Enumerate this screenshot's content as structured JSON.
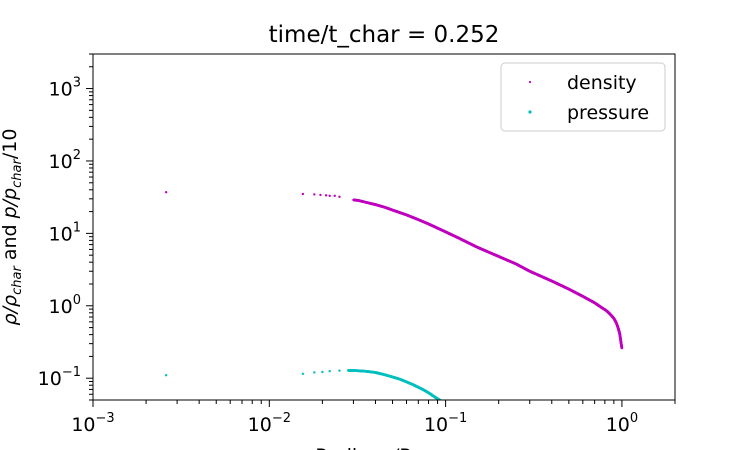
{
  "chart_data": {
    "type": "scatter",
    "title": "time/t_char = 0.252",
    "xlabel": "Radius r/R",
    "ylabel_parts": {
      "rho": "ρ/ρ",
      "rho_sub": "char",
      "and": " and ",
      "p": "p/p",
      "p_sub": "char",
      "tail": "/10"
    },
    "xscale": "log",
    "yscale": "log",
    "xlim": [
      0.001,
      2.0
    ],
    "ylim": [
      0.05,
      3000
    ],
    "x_ticks": [
      {
        "base": "10",
        "exp": "−3",
        "value": 0.001
      },
      {
        "base": "10",
        "exp": "−2",
        "value": 0.01
      },
      {
        "base": "10",
        "exp": "−1",
        "value": 0.1
      },
      {
        "base": "10",
        "exp": "0",
        "value": 1
      }
    ],
    "y_ticks": [
      {
        "base": "10",
        "exp": "−1",
        "value": 0.1
      },
      {
        "base": "10",
        "exp": "0",
        "value": 1
      },
      {
        "base": "10",
        "exp": "1",
        "value": 10
      },
      {
        "base": "10",
        "exp": "2",
        "value": 100
      },
      {
        "base": "10",
        "exp": "3",
        "value": 1000
      }
    ],
    "legend_position": "top-right",
    "grid": false,
    "series": [
      {
        "name": "density",
        "color": "#bf00bf",
        "points": [
          [
            0.0026,
            37
          ],
          [
            0.0155,
            35
          ],
          [
            0.018,
            34.5
          ],
          [
            0.0195,
            34
          ],
          [
            0.021,
            33.5
          ],
          [
            0.022,
            33
          ],
          [
            0.0235,
            33
          ],
          [
            0.025,
            32
          ],
          [
            0.03,
            29
          ],
          [
            0.032,
            28.5
          ],
          [
            0.035,
            27
          ],
          [
            0.04,
            25
          ],
          [
            0.045,
            23
          ],
          [
            0.05,
            21
          ],
          [
            0.06,
            18
          ],
          [
            0.07,
            15.5
          ],
          [
            0.08,
            13.5
          ],
          [
            0.1,
            10.5
          ],
          [
            0.12,
            8.5
          ],
          [
            0.15,
            6.5
          ],
          [
            0.2,
            4.8
          ],
          [
            0.25,
            3.8
          ],
          [
            0.3,
            3.0
          ],
          [
            0.4,
            2.2
          ],
          [
            0.5,
            1.7
          ],
          [
            0.6,
            1.35
          ],
          [
            0.7,
            1.1
          ],
          [
            0.78,
            0.92
          ],
          [
            0.82,
            0.85
          ],
          [
            0.86,
            0.76
          ],
          [
            0.9,
            0.67
          ],
          [
            0.93,
            0.58
          ],
          [
            0.95,
            0.5
          ],
          [
            0.97,
            0.42
          ],
          [
            0.98,
            0.36
          ],
          [
            0.99,
            0.3
          ],
          [
            1.0,
            0.26
          ]
        ]
      },
      {
        "name": "pressure",
        "color": "#00bfbf",
        "points": [
          [
            0.0026,
            0.11
          ],
          [
            0.0155,
            0.115
          ],
          [
            0.018,
            0.12
          ],
          [
            0.02,
            0.122
          ],
          [
            0.022,
            0.125
          ],
          [
            0.025,
            0.127
          ],
          [
            0.028,
            0.128
          ],
          [
            0.03,
            0.128
          ],
          [
            0.035,
            0.125
          ],
          [
            0.04,
            0.12
          ],
          [
            0.045,
            0.112
          ],
          [
            0.05,
            0.104
          ],
          [
            0.055,
            0.097
          ],
          [
            0.06,
            0.089
          ],
          [
            0.065,
            0.082
          ],
          [
            0.07,
            0.075
          ],
          [
            0.075,
            0.069
          ],
          [
            0.08,
            0.063
          ],
          [
            0.085,
            0.057
          ],
          [
            0.09,
            0.052
          ],
          [
            0.095,
            0.048
          ]
        ]
      }
    ]
  }
}
